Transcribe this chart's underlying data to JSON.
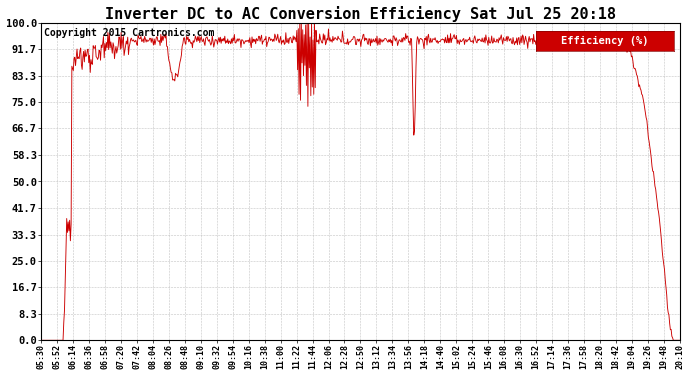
{
  "title": "Inverter DC to AC Conversion Efficiency Sat Jul 25 20:18",
  "copyright": "Copyright 2015 Cartronics.com",
  "legend_label": "Efficiency (%)",
  "legend_bg": "#cc0000",
  "legend_fg": "#ffffff",
  "line_color": "#cc0000",
  "bg_color": "#ffffff",
  "plot_bg_color": "#ffffff",
  "grid_color": "#aaaaaa",
  "title_fontsize": 11,
  "copyright_fontsize": 7,
  "ytick_labels": [
    "0.0",
    "8.3",
    "16.7",
    "25.0",
    "33.3",
    "41.7",
    "50.0",
    "58.3",
    "66.7",
    "75.0",
    "83.3",
    "91.7",
    "100.0"
  ],
  "ytick_values": [
    0.0,
    8.3,
    16.7,
    25.0,
    33.3,
    41.7,
    50.0,
    58.3,
    66.7,
    75.0,
    83.3,
    91.7,
    100.0
  ],
  "ylim": [
    0.0,
    100.0
  ],
  "xtick_labels": [
    "05:30",
    "05:52",
    "06:14",
    "06:36",
    "06:58",
    "07:20",
    "07:42",
    "08:04",
    "08:26",
    "08:48",
    "09:10",
    "09:32",
    "09:54",
    "10:16",
    "10:38",
    "11:00",
    "11:22",
    "11:44",
    "12:06",
    "12:28",
    "12:50",
    "13:12",
    "13:34",
    "13:56",
    "14:18",
    "14:40",
    "15:02",
    "15:24",
    "15:46",
    "16:08",
    "16:30",
    "16:52",
    "17:14",
    "17:36",
    "17:58",
    "18:20",
    "18:42",
    "19:04",
    "19:26",
    "19:48",
    "20:10"
  ]
}
